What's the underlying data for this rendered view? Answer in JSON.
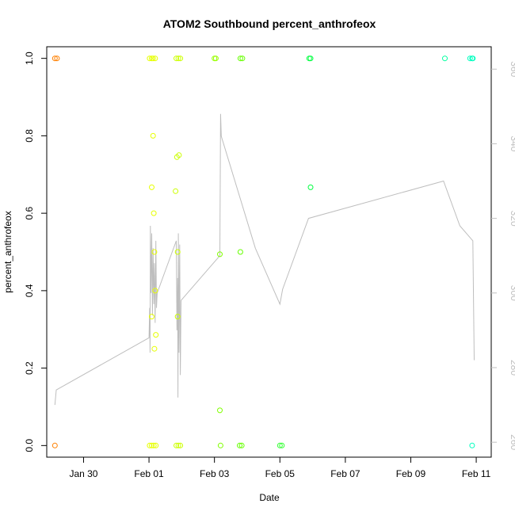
{
  "chart_data": {
    "type": "scatter",
    "title": "ATOM2 Southbound percent_anthrofeox",
    "xlabel": "Date",
    "ylabel": "percent_anthrofeox",
    "xlim": [
      "2020-01-28T21:00",
      "2020-02-11T11:00"
    ],
    "ylim": [
      -0.03,
      1.03
    ],
    "y2lim": [
      256,
      366
    ],
    "x_ticks": [
      {
        "label": "Jan 30",
        "date": "2020-01-30T00:00"
      },
      {
        "label": "Feb 01",
        "date": "2020-02-01T00:00"
      },
      {
        "label": "Feb 03",
        "date": "2020-02-03T00:00"
      },
      {
        "label": "Feb 05",
        "date": "2020-02-05T00:00"
      },
      {
        "label": "Feb 07",
        "date": "2020-02-07T00:00"
      },
      {
        "label": "Feb 09",
        "date": "2020-02-09T00:00"
      },
      {
        "label": "Feb 11",
        "date": "2020-02-11T00:00"
      }
    ],
    "y_ticks": [
      "0.0",
      "0.2",
      "0.4",
      "0.6",
      "0.8",
      "1.0"
    ],
    "y2_ticks": [
      "260",
      "280",
      "300",
      "320",
      "340",
      "360"
    ],
    "grid": false,
    "legend": "none",
    "colors": {
      "axis": "#000000",
      "secondary_axis": "#c0c0c0",
      "heading_line": "#bebebe"
    },
    "points": [
      {
        "date": "2020-01-29T03:00",
        "y": 1.0,
        "color": "#ff8000"
      },
      {
        "date": "2020-01-29T04:30",
        "y": 1.0,
        "color": "#ff8000"
      },
      {
        "date": "2020-01-29T03:00",
        "y": 0.0,
        "color": "#ff8000"
      },
      {
        "date": "2020-02-01T00:30",
        "y": 1.0,
        "color": "#e6ff00"
      },
      {
        "date": "2020-02-01T02:00",
        "y": 1.0,
        "color": "#e6ff00"
      },
      {
        "date": "2020-02-01T03:00",
        "y": 1.0,
        "color": "#e6ff00"
      },
      {
        "date": "2020-02-01T04:30",
        "y": 1.0,
        "color": "#e6ff00"
      },
      {
        "date": "2020-02-01T03:00",
        "y": 0.8,
        "color": "#e6ff00"
      },
      {
        "date": "2020-02-01T02:00",
        "y": 0.667,
        "color": "#e6ff00"
      },
      {
        "date": "2020-02-01T03:30",
        "y": 0.6,
        "color": "#e6ff00"
      },
      {
        "date": "2020-02-01T04:00",
        "y": 0.5,
        "color": "#e6ff00"
      },
      {
        "date": "2020-02-01T04:30",
        "y": 0.4,
        "color": "#e6ff00"
      },
      {
        "date": "2020-02-01T02:00",
        "y": 0.333,
        "color": "#e6ff00"
      },
      {
        "date": "2020-02-01T05:00",
        "y": 0.286,
        "color": "#e6ff00"
      },
      {
        "date": "2020-02-01T04:00",
        "y": 0.25,
        "color": "#e6ff00"
      },
      {
        "date": "2020-02-01T00:30",
        "y": 0.0,
        "color": "#e6ff00"
      },
      {
        "date": "2020-02-01T02:00",
        "y": 0.0,
        "color": "#e6ff00"
      },
      {
        "date": "2020-02-01T03:30",
        "y": 0.0,
        "color": "#e6ff00"
      },
      {
        "date": "2020-02-01T05:00",
        "y": 0.0,
        "color": "#e6ff00"
      },
      {
        "date": "2020-02-01T20:00",
        "y": 1.0,
        "color": "#ccff00"
      },
      {
        "date": "2020-02-01T21:30",
        "y": 1.0,
        "color": "#ccff00"
      },
      {
        "date": "2020-02-01T23:00",
        "y": 1.0,
        "color": "#ccff00"
      },
      {
        "date": "2020-02-01T22:00",
        "y": 0.75,
        "color": "#ccff00"
      },
      {
        "date": "2020-02-01T20:30",
        "y": 0.745,
        "color": "#ccff00"
      },
      {
        "date": "2020-02-01T19:30",
        "y": 0.657,
        "color": "#ccff00"
      },
      {
        "date": "2020-02-01T21:00",
        "y": 0.5,
        "color": "#ccff00"
      },
      {
        "date": "2020-02-01T21:00",
        "y": 0.333,
        "color": "#ccff00"
      },
      {
        "date": "2020-02-01T20:00",
        "y": 0.0,
        "color": "#ccff00"
      },
      {
        "date": "2020-02-01T21:30",
        "y": 0.0,
        "color": "#ccff00"
      },
      {
        "date": "2020-02-01T23:00",
        "y": 0.0,
        "color": "#ccff00"
      },
      {
        "date": "2020-02-03T00:00",
        "y": 1.0,
        "color": "#99ff00"
      },
      {
        "date": "2020-02-03T01:00",
        "y": 1.0,
        "color": "#99ff00"
      },
      {
        "date": "2020-02-03T04:00",
        "y": 0.494,
        "color": "#80ff00"
      },
      {
        "date": "2020-02-03T04:00",
        "y": 0.091,
        "color": "#80ff00"
      },
      {
        "date": "2020-02-03T04:30",
        "y": 0.0,
        "color": "#80ff00"
      },
      {
        "date": "2020-02-03T19:00",
        "y": 1.0,
        "color": "#66ff00"
      },
      {
        "date": "2020-02-03T20:30",
        "y": 1.0,
        "color": "#66ff00"
      },
      {
        "date": "2020-02-03T19:00",
        "y": 0.5,
        "color": "#66ff00"
      },
      {
        "date": "2020-02-03T18:30",
        "y": 0.0,
        "color": "#66ff00"
      },
      {
        "date": "2020-02-03T20:00",
        "y": 0.0,
        "color": "#66ff00"
      },
      {
        "date": "2020-02-05T00:00",
        "y": 0.0,
        "color": "#33ff33"
      },
      {
        "date": "2020-02-05T01:30",
        "y": 0.0,
        "color": "#33ff33"
      },
      {
        "date": "2020-02-05T21:30",
        "y": 1.0,
        "color": "#00ff40"
      },
      {
        "date": "2020-02-05T22:30",
        "y": 1.0,
        "color": "#00ff40"
      },
      {
        "date": "2020-02-05T22:30",
        "y": 0.667,
        "color": "#00ff40"
      },
      {
        "date": "2020-02-10T01:00",
        "y": 1.0,
        "color": "#00ff9f"
      },
      {
        "date": "2020-02-10T19:30",
        "y": 1.0,
        "color": "#00ffbf"
      },
      {
        "date": "2020-02-10T21:00",
        "y": 1.0,
        "color": "#00ffbf"
      },
      {
        "date": "2020-02-10T21:30",
        "y": 1.0,
        "color": "#00ffbf"
      },
      {
        "date": "2020-02-10T21:00",
        "y": 0.0,
        "color": "#00ffbf"
      }
    ],
    "heading_line": [
      [
        "2020-01-29T03:00",
        270
      ],
      [
        "2020-01-29T04:00",
        274
      ],
      [
        "2020-02-01T00:00",
        288
      ],
      [
        "2020-02-01T00:30",
        296
      ],
      [
        "2020-02-01T00:45",
        284
      ],
      [
        "2020-02-01T01:00",
        318
      ],
      [
        "2020-02-01T01:30",
        300
      ],
      [
        "2020-02-01T02:00",
        316
      ],
      [
        "2020-02-01T02:30",
        294
      ],
      [
        "2020-02-01T03:00",
        312
      ],
      [
        "2020-02-01T03:30",
        297
      ],
      [
        "2020-02-01T04:00",
        308
      ],
      [
        "2020-02-01T04:30",
        292
      ],
      [
        "2020-02-01T05:00",
        314
      ],
      [
        "2020-02-01T05:30",
        296
      ],
      [
        "2020-02-01T06:00",
        300
      ],
      [
        "2020-02-01T12:00",
        306
      ],
      [
        "2020-02-01T20:00",
        314
      ],
      [
        "2020-02-01T20:30",
        290
      ],
      [
        "2020-02-01T21:00",
        304
      ],
      [
        "2020-02-01T21:15",
        272
      ],
      [
        "2020-02-01T21:30",
        316
      ],
      [
        "2020-02-01T22:00",
        284
      ],
      [
        "2020-02-01T22:30",
        313
      ],
      [
        "2020-02-01T23:00",
        278
      ],
      [
        "2020-02-01T23:30",
        298
      ],
      [
        "2020-02-03T04:00",
        310
      ],
      [
        "2020-02-03T04:30",
        348
      ],
      [
        "2020-02-03T05:00",
        342
      ],
      [
        "2020-02-04T06:00",
        312
      ],
      [
        "2020-02-05T00:00",
        297
      ],
      [
        "2020-02-05T02:00",
        301
      ],
      [
        "2020-02-05T21:00",
        320
      ],
      [
        "2020-02-10T00:00",
        330
      ],
      [
        "2020-02-10T12:00",
        318
      ],
      [
        "2020-02-10T21:30",
        314
      ],
      [
        "2020-02-10T22:30",
        282
      ]
    ]
  }
}
